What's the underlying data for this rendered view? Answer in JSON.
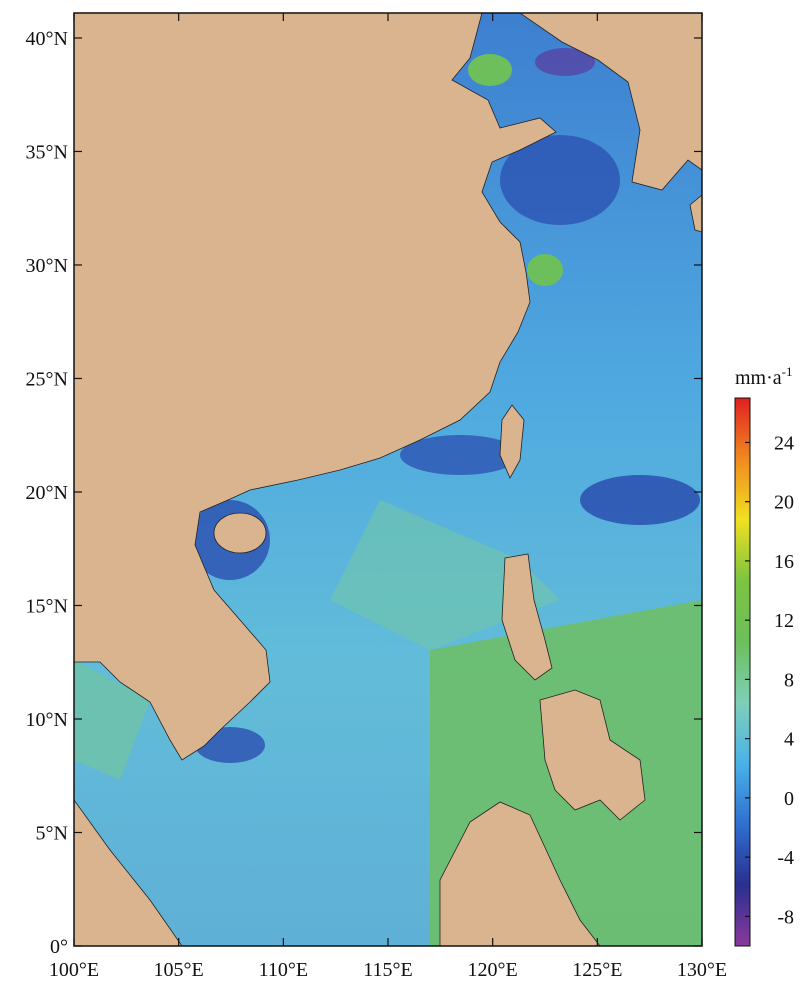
{
  "map": {
    "xlim": [
      100,
      130
    ],
    "ylim": [
      0,
      41.1
    ],
    "xticks": [
      {
        "value": 100,
        "label": "100°E"
      },
      {
        "value": 105,
        "label": "105°E"
      },
      {
        "value": 110,
        "label": "110°E"
      },
      {
        "value": 115,
        "label": "115°E"
      },
      {
        "value": 120,
        "label": "120°E"
      },
      {
        "value": 125,
        "label": "125°E"
      },
      {
        "value": 130,
        "label": "130°E"
      }
    ],
    "yticks": [
      {
        "value": 0,
        "label": "0°"
      },
      {
        "value": 5,
        "label": "5°N"
      },
      {
        "value": 10,
        "label": "10°N"
      },
      {
        "value": 15,
        "label": "15°N"
      },
      {
        "value": 20,
        "label": "20°N"
      },
      {
        "value": 25,
        "label": "25°N"
      },
      {
        "value": 30,
        "label": "30°N"
      },
      {
        "value": 35,
        "label": "35°N"
      },
      {
        "value": 40,
        "label": "40°N"
      }
    ],
    "colorbar": {
      "unit": "mm·a",
      "unit_exponent": "-1",
      "lim": [
        -10,
        27
      ],
      "ticks": [
        -8,
        -4,
        0,
        4,
        8,
        12,
        16,
        20,
        24
      ],
      "colors": [
        "#8a3a9c",
        "#2a2f8f",
        "#2f6fd0",
        "#49b2e8",
        "#7fcfb8",
        "#6cbf5a",
        "#7cc441",
        "#f0e020",
        "#f08a20",
        "#e02020"
      ]
    }
  }
}
